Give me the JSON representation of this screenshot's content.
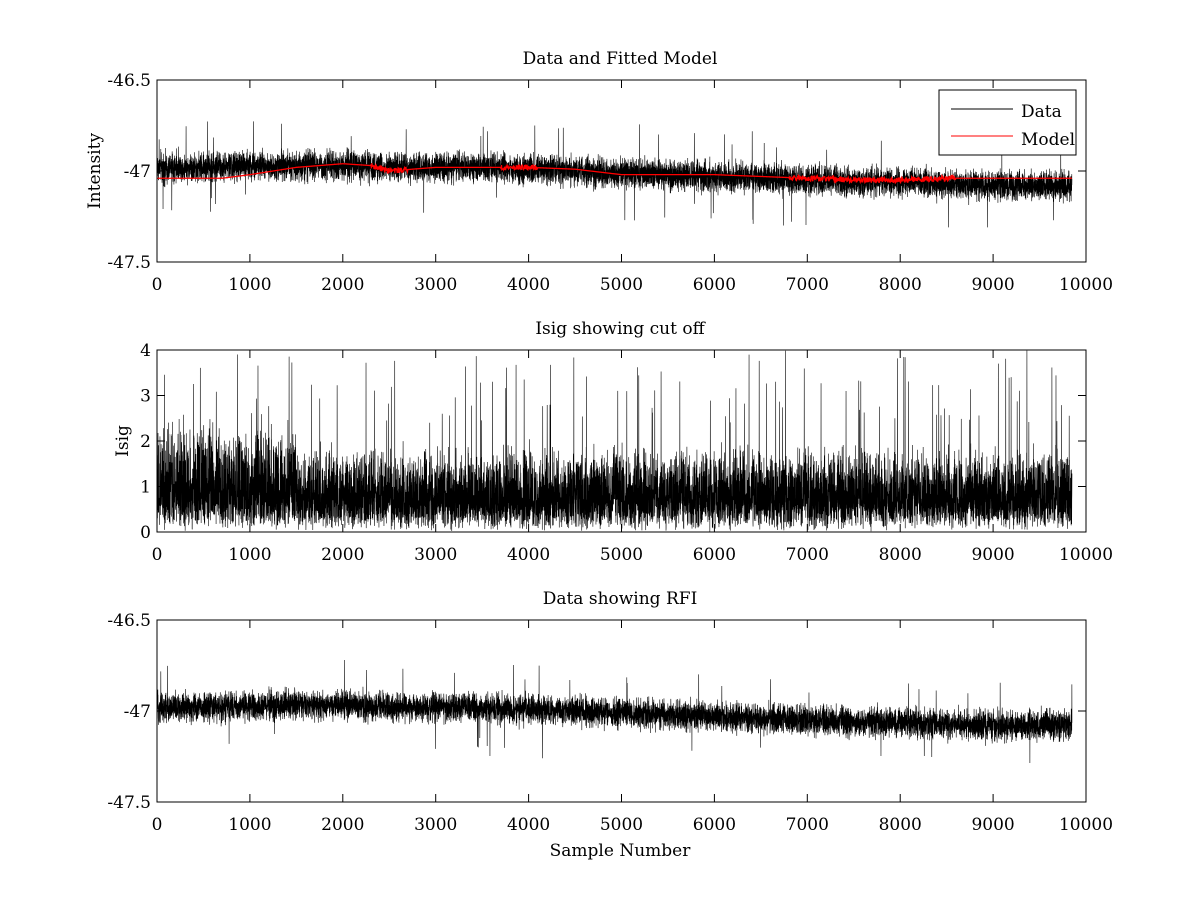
{
  "chart_data": [
    {
      "type": "line",
      "title": "Data and Fitted Model",
      "xlabel": "",
      "ylabel": "Intensity",
      "xlim": [
        0,
        10000
      ],
      "ylim": [
        -47.5,
        -46.5
      ],
      "xticks": [
        "0",
        "1000",
        "2000",
        "3000",
        "4000",
        "5000",
        "6000",
        "7000",
        "8000",
        "9000",
        "10000"
      ],
      "yticks": [
        "-46.5",
        "-47",
        "-47.5"
      ],
      "grid": false,
      "legend": {
        "placement": "top-right",
        "entries": [
          "Data",
          "Model"
        ]
      },
      "colors": {
        "Data": "#000000",
        "Model": "#ff0000"
      },
      "n_samples": 9850,
      "series": [
        {
          "name": "Data",
          "x": [
            0,
            500,
            1000,
            1500,
            2000,
            2500,
            3000,
            3500,
            4000,
            4500,
            5000,
            5500,
            6000,
            6500,
            7000,
            7500,
            8000,
            8500,
            9000,
            9500,
            9850
          ],
          "baseline": [
            -46.98,
            -46.98,
            -46.97,
            -46.97,
            -46.97,
            -46.98,
            -46.98,
            -46.98,
            -46.99,
            -47.0,
            -47.01,
            -47.02,
            -47.03,
            -47.04,
            -47.05,
            -47.06,
            -47.06,
            -47.07,
            -47.08,
            -47.08,
            -47.08
          ],
          "noise_amplitude": 0.09,
          "min": -47.31,
          "max": -46.72
        },
        {
          "name": "Model",
          "x": [
            0,
            700,
            1000,
            1500,
            2000,
            2300,
            2500,
            3000,
            3500,
            4000,
            4500,
            5000,
            5500,
            6000,
            6500,
            7000,
            7500,
            8000,
            8500,
            9000,
            9850
          ],
          "y": [
            -47.04,
            -47.04,
            -47.02,
            -46.98,
            -46.96,
            -46.97,
            -47.0,
            -46.98,
            -46.98,
            -46.98,
            -46.99,
            -47.02,
            -47.02,
            -47.02,
            -47.03,
            -47.04,
            -47.05,
            -47.05,
            -47.04,
            -47.04,
            -47.04
          ]
        }
      ]
    },
    {
      "type": "line",
      "title": "Isig showing cut off",
      "xlabel": "",
      "ylabel": "Isig",
      "xlim": [
        0,
        10000
      ],
      "ylim": [
        0,
        4
      ],
      "xticks": [
        "0",
        "1000",
        "2000",
        "3000",
        "4000",
        "5000",
        "6000",
        "7000",
        "8000",
        "9000",
        "10000"
      ],
      "yticks": [
        "0",
        "1",
        "2",
        "3",
        "4"
      ],
      "grid": false,
      "n_samples": 9850,
      "series": [
        {
          "name": "",
          "x": [
            0,
            1000,
            1500,
            2500,
            5000,
            7500,
            9850
          ],
          "typical_range": [
            0.1,
            2.5
          ],
          "max": 4.0,
          "min": 0.0
        }
      ]
    },
    {
      "type": "line",
      "title": "Data showing RFI",
      "xlabel": "Sample Number",
      "ylabel": "",
      "xlim": [
        0,
        10000
      ],
      "ylim": [
        -47.5,
        -46.5
      ],
      "xticks": [
        "0",
        "1000",
        "2000",
        "3000",
        "4000",
        "5000",
        "6000",
        "7000",
        "8000",
        "9000",
        "10000"
      ],
      "yticks": [
        "-46.5",
        "-47",
        "-47.5"
      ],
      "grid": false,
      "n_samples": 9850,
      "series": [
        {
          "name": "",
          "x": [
            0,
            500,
            1000,
            1500,
            2000,
            2500,
            3000,
            3500,
            4000,
            4500,
            5000,
            5500,
            6000,
            6500,
            7000,
            7500,
            8000,
            8500,
            9000,
            9500,
            9850
          ],
          "baseline": [
            -46.98,
            -46.98,
            -46.97,
            -46.97,
            -46.97,
            -46.98,
            -46.98,
            -46.98,
            -46.99,
            -47.0,
            -47.01,
            -47.02,
            -47.03,
            -47.04,
            -47.05,
            -47.06,
            -47.06,
            -47.07,
            -47.08,
            -47.08,
            -47.08
          ],
          "noise_amplitude": 0.09,
          "min": -47.31,
          "max": -46.72
        }
      ]
    }
  ]
}
